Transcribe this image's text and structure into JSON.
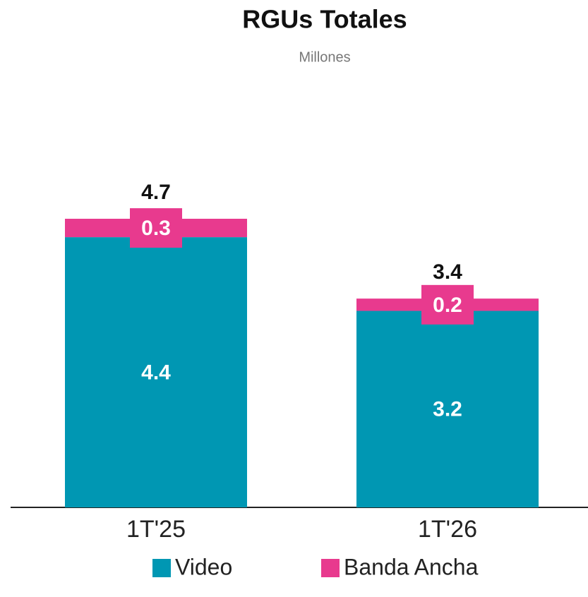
{
  "chart_data": {
    "type": "stacked_bar",
    "title": "RGUs Totales",
    "subtitle": "Millones",
    "categories": [
      "1T'25",
      "1T'26"
    ],
    "series": [
      {
        "name": "Video",
        "color": "#0097b3",
        "values": [
          4.4,
          3.2
        ]
      },
      {
        "name": "Banda Ancha",
        "color": "#e83a8e",
        "values": [
          0.3,
          0.2
        ]
      }
    ],
    "totals": [
      4.7,
      3.4
    ]
  }
}
